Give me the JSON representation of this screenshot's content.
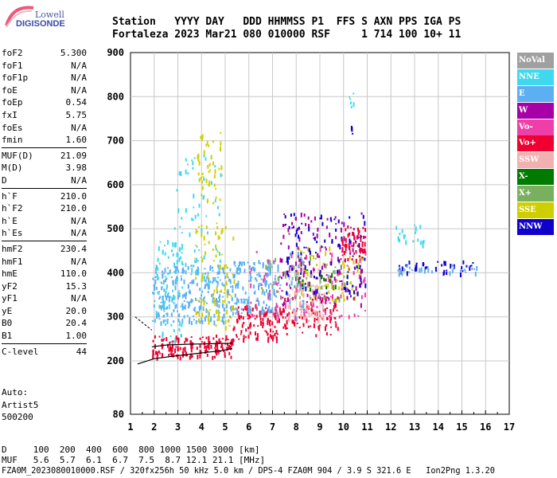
{
  "brand": {
    "line1": "Lowell",
    "line2": "DIGISONDE"
  },
  "header": {
    "labels": "Station   YYYY DAY   DDD HHMMSS P1  FFS S AXN PPS IGA PS",
    "values": "Fortaleza 2023 Mar21 080 010000 RSF     1 714 100 10+ 11"
  },
  "params_groups": [
    [
      [
        "foF2",
        "5.300"
      ],
      [
        "foF1",
        "N/A"
      ],
      [
        "foF1p",
        "N/A"
      ],
      [
        "foE",
        "N/A"
      ],
      [
        "foEp",
        "0.54"
      ],
      [
        "fxI",
        "5.75"
      ],
      [
        "foEs",
        "N/A"
      ],
      [
        "fmin",
        "1.60"
      ]
    ],
    [
      [
        "MUF(D)",
        "21.09"
      ],
      [
        "M(D)",
        "3.98"
      ],
      [
        "D",
        "N/A"
      ]
    ],
    [
      [
        "h`F",
        "210.0"
      ],
      [
        "h`F2",
        "210.0"
      ],
      [
        "h`E",
        "N/A"
      ],
      [
        "h`Es",
        "N/A"
      ]
    ],
    [
      [
        "hmF2",
        "230.4"
      ],
      [
        "hmF1",
        "N/A"
      ],
      [
        "hmE",
        "110.0"
      ],
      [
        "yF2",
        "15.3"
      ],
      [
        "yF1",
        "N/A"
      ],
      [
        "yE",
        "20.0"
      ],
      [
        "B0",
        "20.4"
      ],
      [
        "B1",
        "1.00"
      ]
    ],
    [
      [
        "C-level",
        "44"
      ]
    ]
  ],
  "autoscaling": [
    "Auto:",
    "Artist5",
    "500200"
  ],
  "footer": {
    "d_line": "D     100  200  400  600  800 1000 1500 3000 [km]",
    "muf_line": "MUF   5.6  5.7  6.1  6.7  7.5  8.7 12.1 21.1 [MHz]",
    "file_line": "FZA0M_2023080010000.RSF / 320fx256h 50 kHz 5.0 km / DPS-4 FZA0M 904 / 3.9 S 321.6 E   Ion2Png 1.3.20"
  },
  "legend": [
    {
      "label": "NoVal",
      "color": "#a0a0a0"
    },
    {
      "label": "NNE",
      "color": "#3fd8ef"
    },
    {
      "label": "E",
      "color": "#5cb0f2"
    },
    {
      "label": "W",
      "color": "#a800a8"
    },
    {
      "label": "Vo-",
      "color": "#ee3fa8"
    },
    {
      "label": "Vo+",
      "color": "#ee0030"
    },
    {
      "label": "SSW",
      "color": "#f2b0b0"
    },
    {
      "label": "X-",
      "color": "#007a00"
    },
    {
      "label": "X+",
      "color": "#78b060"
    },
    {
      "label": "SSE",
      "color": "#cfcf00"
    },
    {
      "label": "NNW",
      "color": "#1000cc"
    }
  ],
  "chart_data": {
    "type": "scatter",
    "title": "",
    "xlabel": "",
    "ylabel": "",
    "xlim": [
      1,
      17
    ],
    "ylim": [
      80,
      900
    ],
    "x_ticks": [
      "1",
      "2",
      "3",
      "4",
      "5",
      "6",
      "7",
      "8",
      "9",
      "10",
      "11",
      "12",
      "13",
      "14",
      "15",
      "16",
      "17"
    ],
    "y_ticks": [
      "80",
      "200",
      "300",
      "400",
      "500",
      "600",
      "700",
      "800",
      "900"
    ],
    "grid": true,
    "traces": [
      {
        "name": "O-trace (lower profile)",
        "color": "#000000",
        "x": [
          1.3,
          2.0,
          3.0,
          4.0,
          4.8,
          5.3
        ],
        "y": [
          193,
          205,
          212,
          218,
          223,
          228
        ]
      },
      {
        "name": "O-trace (upper)",
        "color": "#000000",
        "x": [
          1.9,
          2.5,
          3.5,
          4.5,
          5.3
        ],
        "y": [
          232,
          236,
          238,
          239,
          240
        ]
      }
    ],
    "echo_clusters": [
      {
        "color": "#ee0030",
        "x": [
          1.9,
          5.3
        ],
        "y": [
          210,
          260
        ],
        "density": 160
      },
      {
        "color": "#ee0030",
        "x": [
          5.3,
          7.3
        ],
        "y": [
          250,
          330
        ],
        "density": 110
      },
      {
        "color": "#ee0030",
        "x": [
          7.3,
          9.8
        ],
        "y": [
          260,
          350
        ],
        "density": 90
      },
      {
        "color": "#5cb0f2",
        "x": [
          1.9,
          5.3
        ],
        "y": [
          290,
          420
        ],
        "density": 280
      },
      {
        "color": "#5cb0f2",
        "x": [
          5.3,
          7.3
        ],
        "y": [
          310,
          430
        ],
        "density": 150
      },
      {
        "color": "#5cb0f2",
        "x": [
          7.5,
          8.3
        ],
        "y": [
          300,
          450
        ],
        "density": 40
      },
      {
        "color": "#3fd8ef",
        "x": [
          2.0,
          3.2
        ],
        "y": [
          240,
          480
        ],
        "density": 80
      },
      {
        "color": "#3fd8ef",
        "x": [
          2.8,
          4.8
        ],
        "y": [
          380,
          670
        ],
        "density": 60
      },
      {
        "color": "#cfcf00",
        "x": [
          3.7,
          5.4
        ],
        "y": [
          270,
          520
        ],
        "density": 90
      },
      {
        "color": "#cfcf00",
        "x": [
          3.8,
          4.9
        ],
        "y": [
          560,
          720
        ],
        "density": 45
      },
      {
        "color": "#cfcf00",
        "x": [
          7.8,
          10.8
        ],
        "y": [
          340,
          460
        ],
        "density": 90
      },
      {
        "color": "#f2b0b0",
        "x": [
          7.6,
          9.2
        ],
        "y": [
          290,
          410
        ],
        "density": 90
      },
      {
        "color": "#ee3fa8",
        "x": [
          6.0,
          10.9
        ],
        "y": [
          300,
          460
        ],
        "density": 110
      },
      {
        "color": "#a800a8",
        "x": [
          7.3,
          10.9
        ],
        "y": [
          330,
          540
        ],
        "density": 130
      },
      {
        "color": "#1000cc",
        "x": [
          7.5,
          10.9
        ],
        "y": [
          350,
          540
        ],
        "density": 90
      },
      {
        "color": "#78b060",
        "x": [
          6.5,
          10.2
        ],
        "y": [
          340,
          440
        ],
        "density": 40
      },
      {
        "color": "#007a00",
        "x": [
          8.0,
          10.0
        ],
        "y": [
          360,
          410
        ],
        "density": 15
      },
      {
        "color": "#ee0030",
        "x": [
          9.9,
          10.9
        ],
        "y": [
          430,
          510
        ],
        "density": 50
      },
      {
        "color": "#1000cc",
        "x": [
          12.2,
          15.5
        ],
        "y": [
          400,
          430
        ],
        "density": 40
      },
      {
        "color": "#5cb0f2",
        "x": [
          12.2,
          15.6
        ],
        "y": [
          400,
          420
        ],
        "density": 30
      },
      {
        "color": "#3fd8ef",
        "x": [
          12.2,
          13.4
        ],
        "y": [
          460,
          510
        ],
        "density": 20
      },
      {
        "color": "#3fd8ef",
        "x": [
          10.2,
          10.4
        ],
        "y": [
          760,
          820
        ],
        "density": 6
      },
      {
        "color": "#1000cc",
        "x": [
          10.3,
          10.4
        ],
        "y": [
          715,
          735
        ],
        "density": 3
      }
    ]
  }
}
